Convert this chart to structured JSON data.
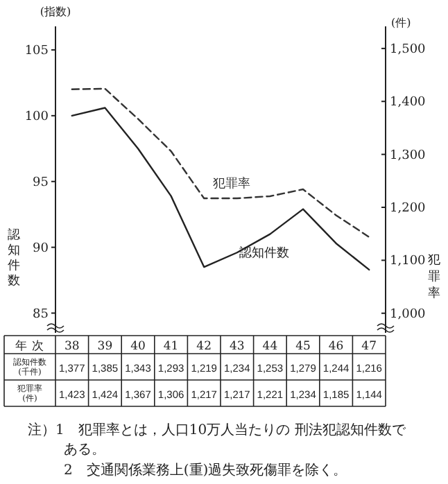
{
  "chart_data": {
    "type": "line",
    "xlabel": "年 次",
    "ylabel": "認知件数",
    "y2label": "犯罪率",
    "categories": [
      "38",
      "39",
      "40",
      "41",
      "42",
      "43",
      "44",
      "45",
      "46",
      "47"
    ],
    "series": [
      {
        "name": "認知件数",
        "color": "#222222",
        "line_style": "solid",
        "values": [
          100.0,
          100.6,
          97.5,
          93.9,
          88.5,
          89.6,
          91.0,
          92.9,
          90.3,
          88.3
        ]
      },
      {
        "name": "犯罪率",
        "color": "#333333",
        "line_style": "dashed",
        "axis": "y2",
        "values": [
          1423,
          1424,
          1367,
          1306,
          1217,
          1217,
          1221,
          1234,
          1185,
          1144
        ],
        "value_labels": [
          "1,423",
          "1,424",
          "1,367",
          "1,306",
          "1,217",
          "1,217",
          "1,221",
          "1,234",
          "1,185",
          "1,144"
        ]
      }
    ],
    "ylim": [
      83.5,
      107
    ],
    "yticks": [
      85,
      90,
      95,
      100,
      105
    ],
    "y2lim": [
      963,
      1547
    ],
    "y2ticks": [
      {
        "value": 1000,
        "label": "1,000"
      },
      {
        "value": 1100,
        "label": "1,100"
      },
      {
        "value": 1200,
        "label": "1,200"
      },
      {
        "value": 1300,
        "label": "1,300"
      },
      {
        "value": 1400,
        "label": "1,400"
      },
      {
        "value": 1500,
        "label": "1,500"
      }
    ],
    "marker": "none",
    "legend": false,
    "grid": false,
    "annotations": [
      "(指数)",
      "(件)",
      "認知件数(千件)",
      "犯罪率(件)",
      "1,377",
      "1,385",
      "1,343",
      "1,293",
      "1,219",
      "1,234",
      "1,253",
      "1,279",
      "1,244",
      "1,216",
      "注）1　犯罪率とは，人口10万人当たりの 刑法犯認知件数である。",
      "2　交通関係業務上(重)過失致死傷罪を除く。"
    ]
  }
}
